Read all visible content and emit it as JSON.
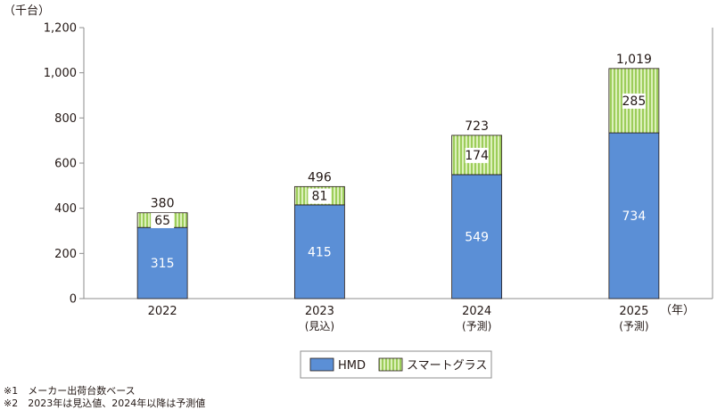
{
  "chart_data": {
    "type": "bar",
    "stacked": true,
    "unit_label": "（千台）",
    "x_unit_label": "（年）",
    "categories": [
      {
        "label": "2022",
        "sublabel": ""
      },
      {
        "label": "2023",
        "sublabel": "(見込)"
      },
      {
        "label": "2024",
        "sublabel": "(予測)"
      },
      {
        "label": "2025",
        "sublabel": "(予測)"
      }
    ],
    "series": [
      {
        "name": "HMD",
        "values": [
          315,
          415,
          549,
          734
        ],
        "color": "#5b8fd6",
        "pattern": "solid"
      },
      {
        "name": "スマートグラス",
        "values": [
          65,
          81,
          174,
          285
        ],
        "color": "#c6e39a",
        "pattern": "vertical-stripes"
      }
    ],
    "totals": [
      "380",
      "496",
      "723",
      "1,019"
    ],
    "ylim": [
      0,
      1200
    ],
    "yticks": [
      "0",
      "200",
      "400",
      "600",
      "800",
      "1,000",
      "1,200"
    ],
    "grid": false,
    "legend_position": "bottom"
  },
  "notes": [
    "※1　メーカー出荷台数ベース",
    "※2　2023年は見込値、2024年以降は予測値"
  ]
}
